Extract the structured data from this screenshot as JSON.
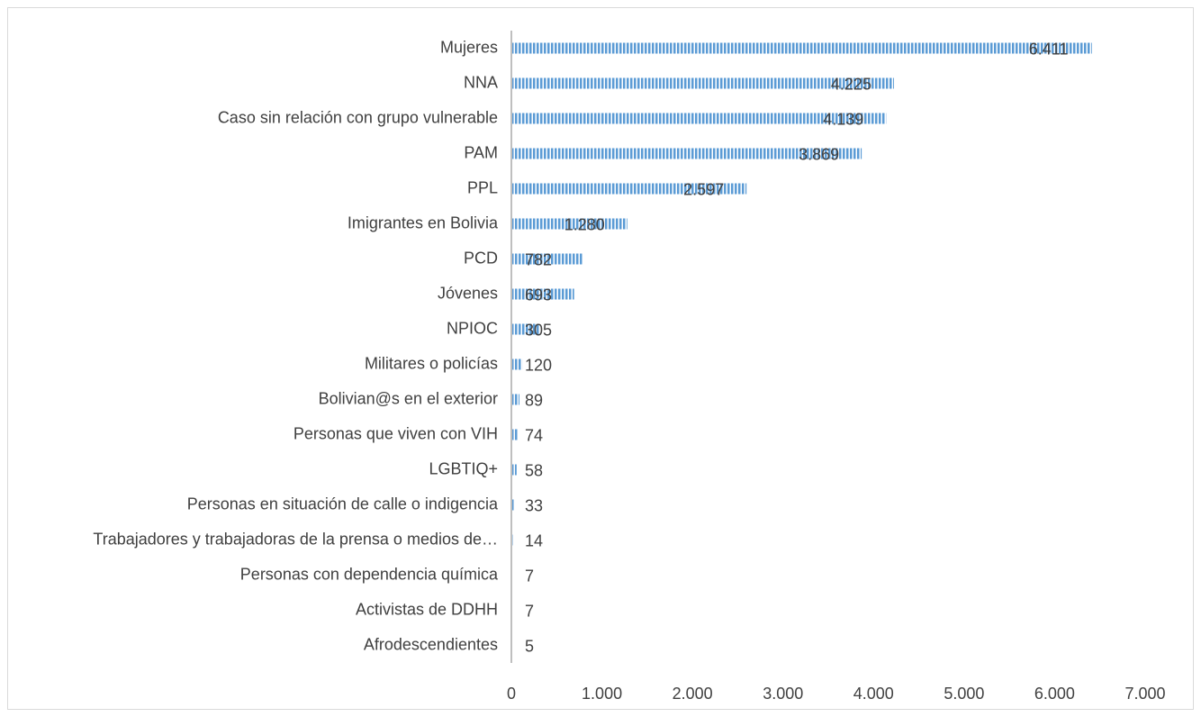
{
  "chart_data": {
    "type": "bar",
    "orientation": "horizontal",
    "categories": [
      "Mujeres",
      "NNA",
      "Caso sin relación con grupo vulnerable",
      "PAM",
      "PPL",
      "Imigrantes en Bolivia",
      "PCD",
      "Jóvenes",
      "NPIOC",
      "Militares o policías",
      "Bolivian@s en el exterior",
      "Personas que viven con VIH",
      "LGBTIQ+",
      "Personas en situación de calle o indigencia",
      "Trabajadores y trabajadoras de la prensa o medios de…",
      "Personas con dependencia química",
      "Activistas de DDHH",
      "Afrodescendientes"
    ],
    "values": [
      6411,
      4225,
      4139,
      3869,
      2597,
      1280,
      782,
      693,
      305,
      120,
      89,
      74,
      58,
      33,
      14,
      7,
      7,
      5
    ],
    "value_labels": [
      "6.411",
      "4.225",
      "4.139",
      "3.869",
      "2.597",
      "1.280",
      "782",
      "693",
      "305",
      "120",
      "89",
      "74",
      "58",
      "33",
      "14",
      "7",
      "7",
      "5"
    ],
    "color": "#5b9bd5",
    "xlim": [
      0,
      7000
    ],
    "xticks": [
      0,
      {
        "value": 1000,
        "label": "1.000"
      },
      {
        "value": 2000,
        "label": "2.000"
      },
      {
        "value": 3000,
        "label": "3.000"
      },
      {
        "value": 4000,
        "label": "4.000"
      },
      {
        "value": 5000,
        "label": "5.000"
      },
      {
        "value": 6000,
        "label": "6.000"
      },
      {
        "value": 7000,
        "label": "7.000"
      }
    ],
    "grid": false
  }
}
